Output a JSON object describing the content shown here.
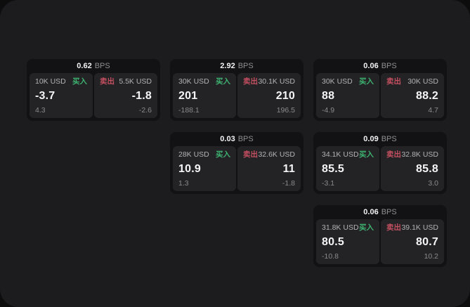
{
  "labels": {
    "bps": "BPS",
    "buy": "买入",
    "sell": "卖出"
  },
  "colors": {
    "buy": "#3eb370",
    "sell": "#c44f5f"
  },
  "cards": [
    {
      "bps": "0.62",
      "col": 1,
      "row": 1,
      "buy": {
        "size": "10K USD",
        "value": "-3.7",
        "delta": "4.3"
      },
      "sell": {
        "size": "5.5K USD",
        "value": "-1.8",
        "delta": "-2.6"
      }
    },
    {
      "bps": "2.92",
      "col": 2,
      "row": 1,
      "buy": {
        "size": "30K USD",
        "value": "201",
        "delta": "-188.1"
      },
      "sell": {
        "size": "30.1K USD",
        "value": "210",
        "delta": "196.5"
      }
    },
    {
      "bps": "0.06",
      "col": 3,
      "row": 1,
      "buy": {
        "size": "30K USD",
        "value": "88",
        "delta": "-4.9"
      },
      "sell": {
        "size": "30K USD",
        "value": "88.2",
        "delta": "4.7"
      }
    },
    {
      "bps": "0.03",
      "col": 2,
      "row": 2,
      "buy": {
        "size": "28K USD",
        "value": "10.9",
        "delta": "1.3"
      },
      "sell": {
        "size": "32.6K USD",
        "value": "11",
        "delta": "-1.8"
      }
    },
    {
      "bps": "0.09",
      "col": 3,
      "row": 2,
      "buy": {
        "size": "34.1K USD",
        "value": "85.5",
        "delta": "-3.1"
      },
      "sell": {
        "size": "32.8K USD",
        "value": "85.8",
        "delta": "3.0"
      }
    },
    {
      "bps": "0.06",
      "col": 3,
      "row": 3,
      "buy": {
        "size": "31.8K USD",
        "value": "80.5",
        "delta": "-10.8"
      },
      "sell": {
        "size": "39.1K USD",
        "value": "80.7",
        "delta": "10.2"
      }
    }
  ]
}
